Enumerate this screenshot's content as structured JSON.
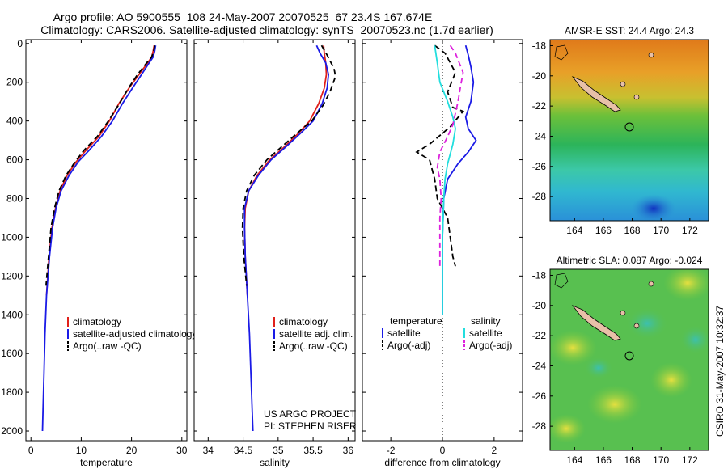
{
  "header": {
    "title_line1": "Argo profile: AO 5900555_108 24-May-2007 20070525_67 23.4S 167.674E",
    "title_line2": "Climatology: CARS2006. Satellite-adjusted climatology: synTS_20070523.nc (1.7d earlier)"
  },
  "stamp": "CSIRO 31-May-2007 10:32:37",
  "colors": {
    "climatology": "#e0201b",
    "satellite": "#1a1ae6",
    "argo": "#000000",
    "cyan": "#22dede",
    "magenta": "#dd22dd",
    "land": "#e8c0a8"
  },
  "chart_data": [
    {
      "type": "line",
      "id": "temperature",
      "xlabel": "temperature",
      "ylabel": "",
      "xlim": [
        -1,
        31
      ],
      "ylim": [
        2050,
        -20
      ],
      "xticks": [
        "0",
        "10",
        "20",
        "30"
      ],
      "yticks": [
        "0",
        "200",
        "400",
        "600",
        "800",
        "1000",
        "1200",
        "1400",
        "1600",
        "1800",
        "2000"
      ],
      "legend": [
        "climatology",
        "satellite-adjusted climatology",
        "Argo(..raw -QC)"
      ],
      "series": [
        {
          "name": "climatology",
          "style": "solid",
          "color": "climatology",
          "points": [
            [
              24.5,
              10
            ],
            [
              24.3,
              40
            ],
            [
              24.0,
              70
            ],
            [
              23.2,
              100
            ],
            [
              21.5,
              160
            ],
            [
              19.5,
              230
            ],
            [
              17.5,
              310
            ],
            [
              15.6,
              400
            ],
            [
              13.5,
              480
            ],
            [
              11.0,
              550
            ],
            [
              9.0,
              610
            ],
            [
              7.2,
              680
            ],
            [
              5.8,
              760
            ],
            [
              4.9,
              850
            ],
            [
              4.2,
              950
            ],
            [
              3.6,
              1100
            ],
            [
              3.1,
              1300
            ]
          ]
        },
        {
          "name": "satellite",
          "style": "solid",
          "color": "satellite",
          "points": [
            [
              24.8,
              10
            ],
            [
              24.6,
              40
            ],
            [
              24.3,
              70
            ],
            [
              23.5,
              100
            ],
            [
              22.0,
              160
            ],
            [
              20.2,
              230
            ],
            [
              18.2,
              310
            ],
            [
              16.2,
              400
            ],
            [
              14.0,
              480
            ],
            [
              11.6,
              550
            ],
            [
              9.4,
              610
            ],
            [
              7.6,
              680
            ],
            [
              6.0,
              760
            ],
            [
              5.0,
              850
            ],
            [
              4.3,
              950
            ],
            [
              3.7,
              1100
            ],
            [
              3.1,
              1300
            ],
            [
              2.8,
              1500
            ],
            [
              2.6,
              1700
            ],
            [
              2.4,
              1900
            ],
            [
              2.3,
              2000
            ]
          ]
        },
        {
          "name": "Argo(..raw -QC)",
          "style": "dashed",
          "color": "argo",
          "points": [
            [
              24.6,
              10
            ],
            [
              24.4,
              40
            ],
            [
              24.0,
              70
            ],
            [
              23.0,
              100
            ],
            [
              21.2,
              160
            ],
            [
              19.4,
              230
            ],
            [
              17.6,
              310
            ],
            [
              15.4,
              400
            ],
            [
              13.2,
              480
            ],
            [
              10.6,
              550
            ],
            [
              8.8,
              610
            ],
            [
              7.0,
              680
            ],
            [
              5.6,
              760
            ],
            [
              4.7,
              850
            ],
            [
              4.0,
              950
            ],
            [
              3.5,
              1100
            ],
            [
              3.0,
              1250
            ]
          ]
        }
      ]
    },
    {
      "type": "line",
      "id": "salinity",
      "xlabel": "salinity",
      "ylabel": "",
      "xlim": [
        33.8,
        36.1
      ],
      "ylim": [
        2050,
        -20
      ],
      "xticks": [
        "34",
        "34.5",
        "35",
        "35.5",
        "36"
      ],
      "yticks": [],
      "legend": [
        "climatology",
        "satellite adj. clim.",
        "Argo(..raw -QC)"
      ],
      "annotation": [
        "US ARGO PROJECT",
        "PI: STEPHEN RISER"
      ],
      "series": [
        {
          "name": "climatology",
          "style": "solid",
          "color": "climatology",
          "points": [
            [
              35.65,
              10
            ],
            [
              35.66,
              50
            ],
            [
              35.68,
              100
            ],
            [
              35.69,
              160
            ],
            [
              35.66,
              230
            ],
            [
              35.58,
              310
            ],
            [
              35.45,
              400
            ],
            [
              35.3,
              460
            ],
            [
              35.1,
              530
            ],
            [
              34.88,
              600
            ],
            [
              34.7,
              680
            ],
            [
              34.58,
              760
            ],
            [
              34.53,
              850
            ],
            [
              34.52,
              950
            ],
            [
              34.53,
              1100
            ],
            [
              34.56,
              1300
            ]
          ]
        },
        {
          "name": "satellite",
          "style": "solid",
          "color": "satellite",
          "points": [
            [
              35.55,
              10
            ],
            [
              35.6,
              50
            ],
            [
              35.68,
              100
            ],
            [
              35.72,
              160
            ],
            [
              35.7,
              230
            ],
            [
              35.63,
              310
            ],
            [
              35.5,
              400
            ],
            [
              35.33,
              460
            ],
            [
              35.12,
              530
            ],
            [
              34.9,
              600
            ],
            [
              34.72,
              680
            ],
            [
              34.58,
              760
            ],
            [
              34.52,
              850
            ],
            [
              34.52,
              950
            ],
            [
              34.53,
              1100
            ],
            [
              34.56,
              1300
            ],
            [
              34.59,
              1500
            ],
            [
              34.61,
              1700
            ],
            [
              34.63,
              1900
            ],
            [
              34.64,
              2000
            ]
          ]
        },
        {
          "name": "Argo(..raw -QC)",
          "style": "dashed",
          "color": "argo",
          "points": [
            [
              35.62,
              10
            ],
            [
              35.7,
              60
            ],
            [
              35.8,
              130
            ],
            [
              35.82,
              170
            ],
            [
              35.74,
              250
            ],
            [
              35.64,
              320
            ],
            [
              35.48,
              400
            ],
            [
              35.28,
              460
            ],
            [
              35.06,
              530
            ],
            [
              34.84,
              600
            ],
            [
              34.66,
              680
            ],
            [
              34.55,
              760
            ],
            [
              34.5,
              850
            ],
            [
              34.49,
              950
            ],
            [
              34.51,
              1100
            ],
            [
              34.55,
              1250
            ]
          ]
        }
      ]
    },
    {
      "type": "line",
      "id": "difference",
      "xlabel": "difference from climatology",
      "ylabel": "",
      "xlim": [
        -3.1,
        3.1
      ],
      "ylim": [
        2050,
        -20
      ],
      "xticks": [
        "-2",
        "0",
        "2"
      ],
      "yticks": [],
      "legend_temperature_heading": "temperature",
      "legend_salinity_heading": "salinity",
      "legend": [
        "satellite",
        "Argo(-adj)",
        "satellite",
        "Argo(-adj)"
      ],
      "series": [
        {
          "name": "temperature satellite",
          "style": "solid",
          "color": "satellite",
          "points": [
            [
              0.9,
              10
            ],
            [
              1.0,
              60
            ],
            [
              1.1,
              120
            ],
            [
              1.2,
              200
            ],
            [
              1.1,
              300
            ],
            [
              0.9,
              380
            ],
            [
              1.0,
              440
            ],
            [
              1.3,
              500
            ],
            [
              1.0,
              560
            ],
            [
              0.6,
              620
            ],
            [
              0.2,
              700
            ],
            [
              0.05,
              800
            ],
            [
              0,
              1000
            ],
            [
              0,
              1300
            ],
            [
              0,
              1400
            ]
          ]
        },
        {
          "name": "temperature Argo(-adj)",
          "style": "dashed",
          "color": "argo",
          "points": [
            [
              -0.3,
              10
            ],
            [
              0.1,
              50
            ],
            [
              0.5,
              150
            ],
            [
              0.2,
              250
            ],
            [
              0.4,
              330
            ],
            [
              0.8,
              350
            ],
            [
              0.3,
              430
            ],
            [
              -0.5,
              520
            ],
            [
              -1.0,
              560
            ],
            [
              -0.5,
              600
            ],
            [
              -0.3,
              700
            ],
            [
              -0.2,
              800
            ],
            [
              0.2,
              900
            ],
            [
              0.3,
              1000
            ],
            [
              0.4,
              1100
            ],
            [
              0.5,
              1150
            ]
          ]
        },
        {
          "name": "salinity satellite",
          "style": "solid",
          "color": "cyan",
          "points": [
            [
              -0.3,
              10
            ],
            [
              -0.2,
              100
            ],
            [
              -0.1,
              200
            ],
            [
              0.2,
              300
            ],
            [
              0.4,
              380
            ],
            [
              0.5,
              440
            ],
            [
              0.4,
              520
            ],
            [
              0.2,
              620
            ],
            [
              0.1,
              700
            ],
            [
              0.05,
              800
            ],
            [
              0,
              1000
            ],
            [
              0,
              1300
            ],
            [
              0,
              1400
            ]
          ]
        },
        {
          "name": "salinity Argo(-adj)",
          "style": "dashed",
          "color": "magenta",
          "points": [
            [
              0.3,
              10
            ],
            [
              0.5,
              50
            ],
            [
              0.8,
              150
            ],
            [
              0.7,
              220
            ],
            [
              0.6,
              300
            ],
            [
              0.4,
              420
            ],
            [
              0.2,
              480
            ],
            [
              -0.1,
              560
            ],
            [
              -0.2,
              640
            ],
            [
              -0.1,
              700
            ],
            [
              -0.05,
              800
            ],
            [
              -0.1,
              900
            ],
            [
              -0.1,
              1000
            ],
            [
              -0.1,
              1100
            ],
            [
              -0.1,
              1150
            ]
          ]
        }
      ]
    }
  ],
  "maps": [
    {
      "id": "sst-map",
      "title": "AMSR-E SST: 24.4 Argo: 24.3",
      "xticks": [
        "164",
        "166",
        "168",
        "170",
        "172"
      ],
      "yticks": [
        "-18",
        "-20",
        "-22",
        "-24",
        "-26",
        "-28"
      ]
    },
    {
      "id": "sla-map",
      "title": "Altimetric SLA: 0.087 Argo: -0.024",
      "xticks": [
        "164",
        "166",
        "168",
        "170",
        "172"
      ],
      "yticks": [
        "-18",
        "-20",
        "-22",
        "-24",
        "-26",
        "-28"
      ]
    }
  ]
}
